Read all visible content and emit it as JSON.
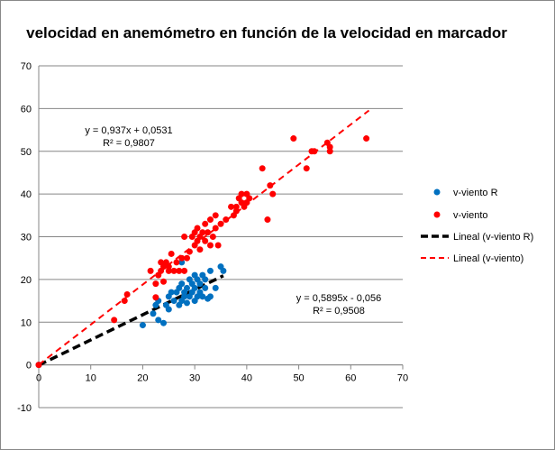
{
  "chart_data": {
    "type": "scatter",
    "title": "velocidad en anemómetro en función de  la  velocidad en marcador",
    "xlim": [
      0,
      70
    ],
    "ylim": [
      -10,
      70
    ],
    "x_ticks": [
      "0",
      "10",
      "20",
      "30",
      "40",
      "50",
      "60",
      "70"
    ],
    "y_ticks": [
      "-10",
      "0",
      "10",
      "20",
      "30",
      "40",
      "50",
      "60",
      "70"
    ],
    "grid": "horizontal",
    "legend_placement": "right",
    "series": [
      {
        "name": "v-viento R",
        "color": "#0070C0",
        "points": [
          [
            0,
            0
          ],
          [
            20,
            9.3
          ],
          [
            22,
            12
          ],
          [
            22.5,
            14
          ],
          [
            23,
            10.5
          ],
          [
            23,
            15
          ],
          [
            24,
            9.8
          ],
          [
            24.5,
            14
          ],
          [
            25,
            13
          ],
          [
            25,
            16
          ],
          [
            25.5,
            17
          ],
          [
            26,
            15
          ],
          [
            26.5,
            17
          ],
          [
            27,
            14
          ],
          [
            27,
            18
          ],
          [
            27.5,
            15
          ],
          [
            27.5,
            19
          ],
          [
            28,
            17
          ],
          [
            28,
            16
          ],
          [
            28.5,
            18
          ],
          [
            28.5,
            14.5
          ],
          [
            29,
            20
          ],
          [
            29,
            16
          ],
          [
            29.5,
            19
          ],
          [
            29.5,
            17
          ],
          [
            30,
            21
          ],
          [
            30,
            15
          ],
          [
            30,
            18
          ],
          [
            30.5,
            20
          ],
          [
            30.5,
            16
          ],
          [
            31,
            19
          ],
          [
            31,
            17
          ],
          [
            31.5,
            21
          ],
          [
            31.5,
            16
          ],
          [
            32,
            18
          ],
          [
            32,
            20
          ],
          [
            32.5,
            15.5
          ],
          [
            33,
            22
          ],
          [
            33,
            16
          ],
          [
            34,
            18
          ],
          [
            35,
            23
          ],
          [
            35.5,
            22
          ],
          [
            27.5,
            24
          ]
        ]
      },
      {
        "name": "v-viento",
        "color": "#FF0000",
        "points": [
          [
            0,
            0
          ],
          [
            14.5,
            10.5
          ],
          [
            16.5,
            15
          ],
          [
            17,
            16.5
          ],
          [
            21.5,
            22
          ],
          [
            22.5,
            15.8
          ],
          [
            22.5,
            19
          ],
          [
            23,
            21
          ],
          [
            23.5,
            22
          ],
          [
            23.5,
            24
          ],
          [
            24,
            19.5
          ],
          [
            24,
            23
          ],
          [
            24.5,
            24
          ],
          [
            25,
            22
          ],
          [
            25,
            23
          ],
          [
            25.5,
            26
          ],
          [
            26,
            22
          ],
          [
            26.5,
            24
          ],
          [
            27,
            22
          ],
          [
            27.5,
            25
          ],
          [
            28,
            22
          ],
          [
            28,
            30
          ],
          [
            28.5,
            25
          ],
          [
            29,
            26.5
          ],
          [
            29.5,
            30
          ],
          [
            30,
            28
          ],
          [
            30,
            31
          ],
          [
            30.5,
            29
          ],
          [
            30.5,
            32
          ],
          [
            31,
            27
          ],
          [
            31,
            30
          ],
          [
            31.5,
            31
          ],
          [
            32,
            29
          ],
          [
            32,
            33
          ],
          [
            32.5,
            31
          ],
          [
            33,
            34
          ],
          [
            33,
            28
          ],
          [
            33.5,
            30
          ],
          [
            34,
            32
          ],
          [
            34,
            35
          ],
          [
            34.5,
            28
          ],
          [
            35,
            33
          ],
          [
            36,
            34
          ],
          [
            37,
            37
          ],
          [
            37.5,
            35
          ],
          [
            38,
            36
          ],
          [
            38,
            37
          ],
          [
            38.5,
            39
          ],
          [
            39,
            38
          ],
          [
            39,
            40
          ],
          [
            39.5,
            37
          ],
          [
            40,
            38
          ],
          [
            40,
            40
          ],
          [
            40.5,
            39
          ],
          [
            43,
            46
          ],
          [
            44,
            34
          ],
          [
            44.5,
            42
          ],
          [
            45,
            40
          ],
          [
            49,
            53
          ],
          [
            51.5,
            46
          ],
          [
            52.5,
            50
          ],
          [
            53,
            50
          ],
          [
            55.5,
            52
          ],
          [
            56,
            51
          ],
          [
            56,
            50
          ],
          [
            63,
            53
          ]
        ]
      }
    ],
    "trendlines": [
      {
        "name": "Lineal (v-viento R)",
        "color": "#000000",
        "slope": 0.5895,
        "intercept": -0.056,
        "x_range": [
          0,
          35.5
        ],
        "equation": "y = 0,5895x - 0,056",
        "r2": "R² = 0,9508"
      },
      {
        "name": "Lineal (v-viento)",
        "color": "#FF0000",
        "slope": 0.937,
        "intercept": 0.0531,
        "x_range": [
          0,
          63.5
        ],
        "equation": "y = 0,937x + 0,0531",
        "r2": "R² = 0,9807"
      }
    ]
  }
}
